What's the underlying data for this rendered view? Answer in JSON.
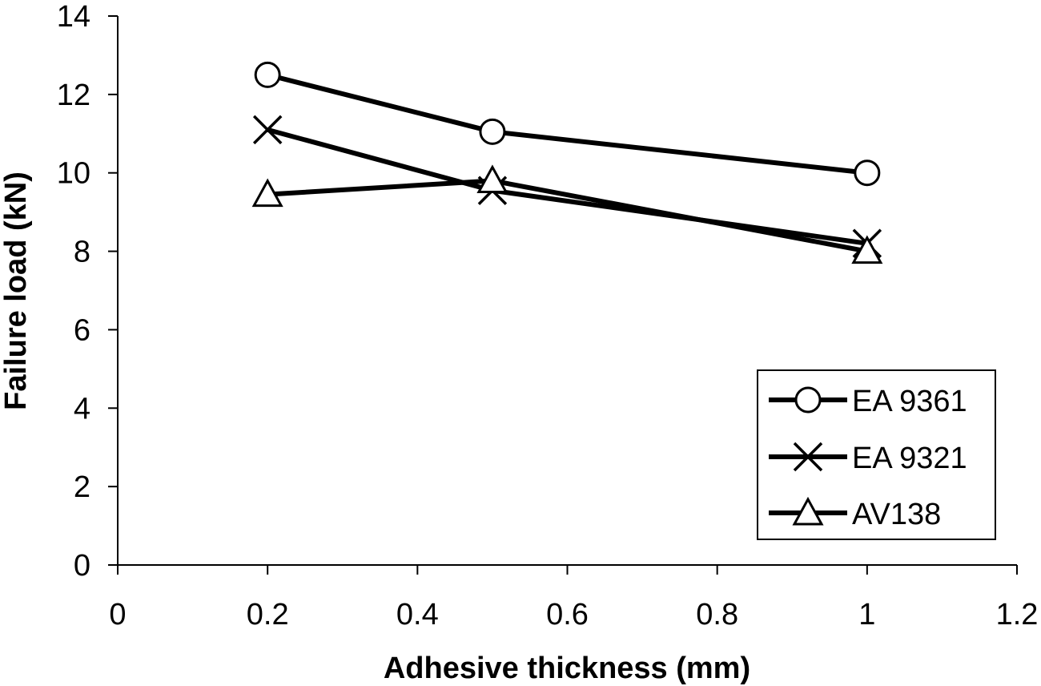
{
  "chart_data": {
    "type": "line",
    "title": "",
    "xlabel": "Adhesive thickness (mm)",
    "ylabel": "Failure load (kN)",
    "xlim": [
      0,
      1.2
    ],
    "ylim": [
      0,
      14
    ],
    "xticks": [
      "0",
      "0.2",
      "0.4",
      "0.6",
      "0.8",
      "1",
      "1.2"
    ],
    "yticks": [
      "0",
      "2",
      "4",
      "6",
      "8",
      "10",
      "12",
      "14"
    ],
    "grid": false,
    "legend_position": "bottom-right",
    "series": [
      {
        "name": "EA 9361",
        "marker": "circle",
        "color": "#000000",
        "x": [
          0.2,
          0.5,
          1.0
        ],
        "y": [
          12.5,
          11.05,
          10.0
        ]
      },
      {
        "name": "EA 9321",
        "marker": "x",
        "color": "#000000",
        "x": [
          0.2,
          0.5,
          1.0
        ],
        "y": [
          11.1,
          9.55,
          8.2
        ]
      },
      {
        "name": "AV138",
        "marker": "triangle",
        "color": "#000000",
        "x": [
          0.2,
          0.5,
          1.0
        ],
        "y": [
          9.45,
          9.8,
          8.0
        ]
      }
    ]
  }
}
